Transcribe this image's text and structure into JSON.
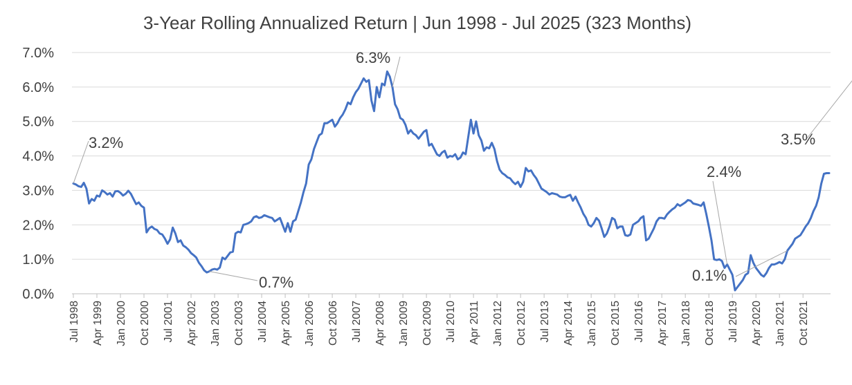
{
  "chart_data": {
    "type": "line",
    "title": "3-Year Rolling Annualized Return | Jun 1998 - Jul 2025 (323 Months)",
    "xlabel": "",
    "ylabel": "",
    "ylim": [
      0,
      0.07
    ],
    "y_ticks": [
      "0.0%",
      "1.0%",
      "2.0%",
      "3.0%",
      "4.0%",
      "5.0%",
      "6.0%",
      "7.0%"
    ],
    "grid": "horizontal",
    "x_tick_labels": [
      "Jul 1998",
      "Apr 1999",
      "Jan 2000",
      "Oct 2000",
      "Jul 2001",
      "Apr 2002",
      "Jan 2003",
      "Oct 2003",
      "Jul 2004",
      "Apr 2005",
      "Jan 2006",
      "Oct 2006",
      "Jul 2007",
      "Apr 2008",
      "Jan 2009",
      "Oct 2009",
      "Jul 2010",
      "Apr 2011",
      "Jan 2012",
      "Oct 2012",
      "Jul 2013",
      "Apr 2014",
      "Jan 2015",
      "Oct 2015",
      "Jul 2016",
      "Apr 2017",
      "Jan 2018",
      "Oct 2018",
      "Jul 2019",
      "Apr 2020",
      "Jan 2021",
      "Oct 2021"
    ],
    "series": [
      {
        "color": "#4472c4",
        "values": [
          3.2,
          3.17,
          3.12,
          3.1,
          3.22,
          3.05,
          2.62,
          2.75,
          2.7,
          2.85,
          2.82,
          3.0,
          2.95,
          2.88,
          2.92,
          2.82,
          2.97,
          2.98,
          2.93,
          2.85,
          2.9,
          2.99,
          2.9,
          2.75,
          2.6,
          2.65,
          2.55,
          2.5,
          1.78,
          1.9,
          1.95,
          1.88,
          1.85,
          1.75,
          1.72,
          1.6,
          1.45,
          1.58,
          1.92,
          1.75,
          1.5,
          1.55,
          1.4,
          1.35,
          1.28,
          1.18,
          1.12,
          1.05,
          0.9,
          0.8,
          0.68,
          0.62,
          0.65,
          0.7,
          0.72,
          0.7,
          0.76,
          1.05,
          1.0,
          1.1,
          1.2,
          1.22,
          1.75,
          1.8,
          1.78,
          2.0,
          2.02,
          2.05,
          2.1,
          2.22,
          2.25,
          2.2,
          2.22,
          2.28,
          2.25,
          2.22,
          2.2,
          2.1,
          2.15,
          2.2,
          2.0,
          1.8,
          2.05,
          1.8,
          2.1,
          2.15,
          2.4,
          2.65,
          2.95,
          3.2,
          3.75,
          3.9,
          4.2,
          4.4,
          4.6,
          4.65,
          4.95,
          4.95,
          5.0,
          5.05,
          4.85,
          4.95,
          5.1,
          5.2,
          5.35,
          5.55,
          5.5,
          5.7,
          5.85,
          5.95,
          6.1,
          6.25,
          6.15,
          6.2,
          5.6,
          5.3,
          6.0,
          5.7,
          6.1,
          6.05,
          6.45,
          6.3,
          6.0,
          5.5,
          5.35,
          5.1,
          5.05,
          4.9,
          4.65,
          4.75,
          4.65,
          4.6,
          4.5,
          4.6,
          4.7,
          4.75,
          4.3,
          4.35,
          4.2,
          4.05,
          4.0,
          4.1,
          4.15,
          3.95,
          4.0,
          3.98,
          4.05,
          3.9,
          3.95,
          4.1,
          4.05,
          4.55,
          5.05,
          4.65,
          5.0,
          4.6,
          4.45,
          4.15,
          4.25,
          4.22,
          4.38,
          4.2,
          3.85,
          3.6,
          3.5,
          3.45,
          3.38,
          3.35,
          3.25,
          3.18,
          3.25,
          3.1,
          3.25,
          3.65,
          3.55,
          3.58,
          3.45,
          3.35,
          3.2,
          3.05,
          3.0,
          2.95,
          2.88,
          2.92,
          2.9,
          2.88,
          2.82,
          2.8,
          2.8,
          2.84,
          2.87,
          2.7,
          2.82,
          2.65,
          2.5,
          2.32,
          2.2,
          2.0,
          1.95,
          2.05,
          2.2,
          2.12,
          1.9,
          1.65,
          1.75,
          1.95,
          2.2,
          2.15,
          1.9,
          1.95,
          1.95,
          1.7,
          1.68,
          1.72,
          2.0,
          2.05,
          2.1,
          2.2,
          2.25,
          1.55,
          1.6,
          1.75,
          1.9,
          2.1,
          2.2,
          2.2,
          2.18,
          2.3,
          2.38,
          2.45,
          2.5,
          2.6,
          2.55,
          2.6,
          2.65,
          2.72,
          2.7,
          2.62,
          2.6,
          2.58,
          2.55,
          2.65,
          2.32,
          1.95,
          1.55,
          1.0,
          0.98,
          1.0,
          0.95,
          0.75,
          0.85,
          0.7,
          0.55,
          0.1,
          0.2,
          0.3,
          0.4,
          0.55,
          0.6,
          1.12,
          0.9,
          0.75,
          0.65,
          0.55,
          0.5,
          0.6,
          0.75,
          0.85,
          0.85,
          0.88,
          0.92,
          0.88,
          1.0,
          1.25,
          1.35,
          1.45,
          1.6,
          1.65,
          1.7,
          1.82,
          1.95,
          2.05,
          2.2,
          2.4,
          2.55,
          2.8,
          3.2,
          3.48,
          3.5,
          3.5
        ]
      }
    ],
    "annotations": [
      "3.2%",
      "0.7%",
      "6.3%",
      "2.4%",
      "0.1%",
      "3.5%"
    ]
  }
}
